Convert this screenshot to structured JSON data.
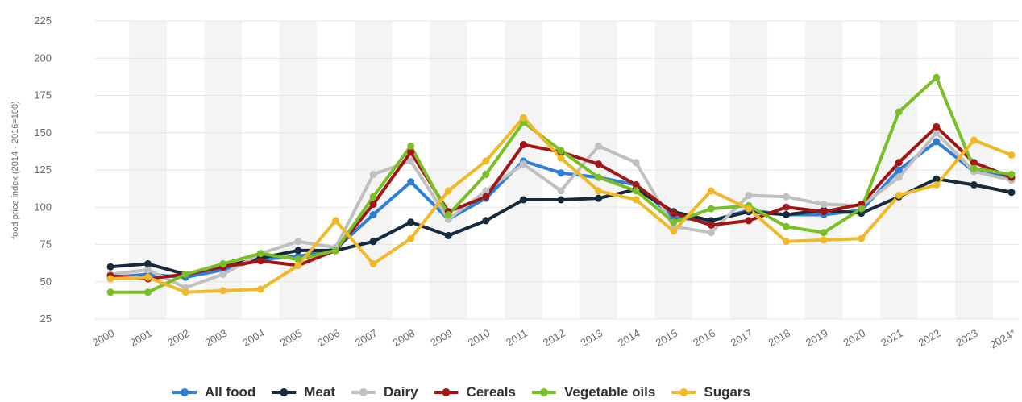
{
  "chart_data": {
    "type": "line",
    "title": "",
    "xlabel": "",
    "ylabel": "food price index (2014 - 2016=100)",
    "ylim": [
      25,
      225
    ],
    "yticks": [
      "25",
      "50",
      "75",
      "100",
      "125",
      "150",
      "175",
      "200",
      "225"
    ],
    "categories": [
      "2000",
      "2001",
      "2002",
      "2003",
      "2004",
      "2005",
      "2006",
      "2007",
      "2008",
      "2009",
      "2010",
      "2011",
      "2012",
      "2013",
      "2014",
      "2015",
      "2016",
      "2017",
      "2018",
      "2019",
      "2020",
      "2021",
      "2022",
      "2023",
      "2024*"
    ],
    "grid": true,
    "legend_position": "bottom",
    "series": [
      {
        "name": "All food",
        "color": "#2f7ed8",
        "values": [
          53,
          55,
          53,
          58,
          65,
          67,
          72,
          95,
          117,
          92,
          106,
          131,
          123,
          120,
          115,
          93,
          91,
          98,
          95,
          95,
          98,
          125,
          144,
          124,
          120
        ]
      },
      {
        "name": "Meat",
        "color": "#152a3c",
        "values": [
          60,
          62,
          55,
          60,
          66,
          71,
          71,
          77,
          90,
          81,
          91,
          105,
          105,
          106,
          112,
          97,
          91,
          97,
          95,
          98,
          96,
          107,
          119,
          115,
          110
        ]
      },
      {
        "name": "Dairy",
        "color": "#c0c0c0",
        "values": [
          55,
          58,
          46,
          55,
          69,
          77,
          73,
          122,
          131,
          92,
          111,
          129,
          111,
          141,
          130,
          87,
          83,
          108,
          107,
          102,
          101,
          120,
          150,
          124,
          118
        ]
      },
      {
        "name": "Cereals",
        "color": "#a31515",
        "values": [
          54,
          52,
          55,
          60,
          64,
          61,
          71,
          102,
          137,
          97,
          107,
          142,
          137,
          129,
          115,
          96,
          88,
          91,
          100,
          97,
          102,
          130,
          154,
          130,
          120
        ]
      },
      {
        "name": "Vegetable oils",
        "color": "#78c025",
        "values": [
          43,
          43,
          55,
          62,
          69,
          65,
          71,
          107,
          141,
          95,
          122,
          157,
          138,
          120,
          111,
          90,
          99,
          101,
          87,
          83,
          99,
          164,
          187,
          126,
          122
        ]
      },
      {
        "name": "Sugars",
        "color": "#f0b929",
        "values": [
          52,
          53,
          43,
          44,
          45,
          61,
          91,
          62,
          79,
          111,
          131,
          160,
          133,
          111,
          105,
          84,
          111,
          99,
          77,
          78,
          79,
          108,
          115,
          145,
          135
        ]
      }
    ]
  }
}
